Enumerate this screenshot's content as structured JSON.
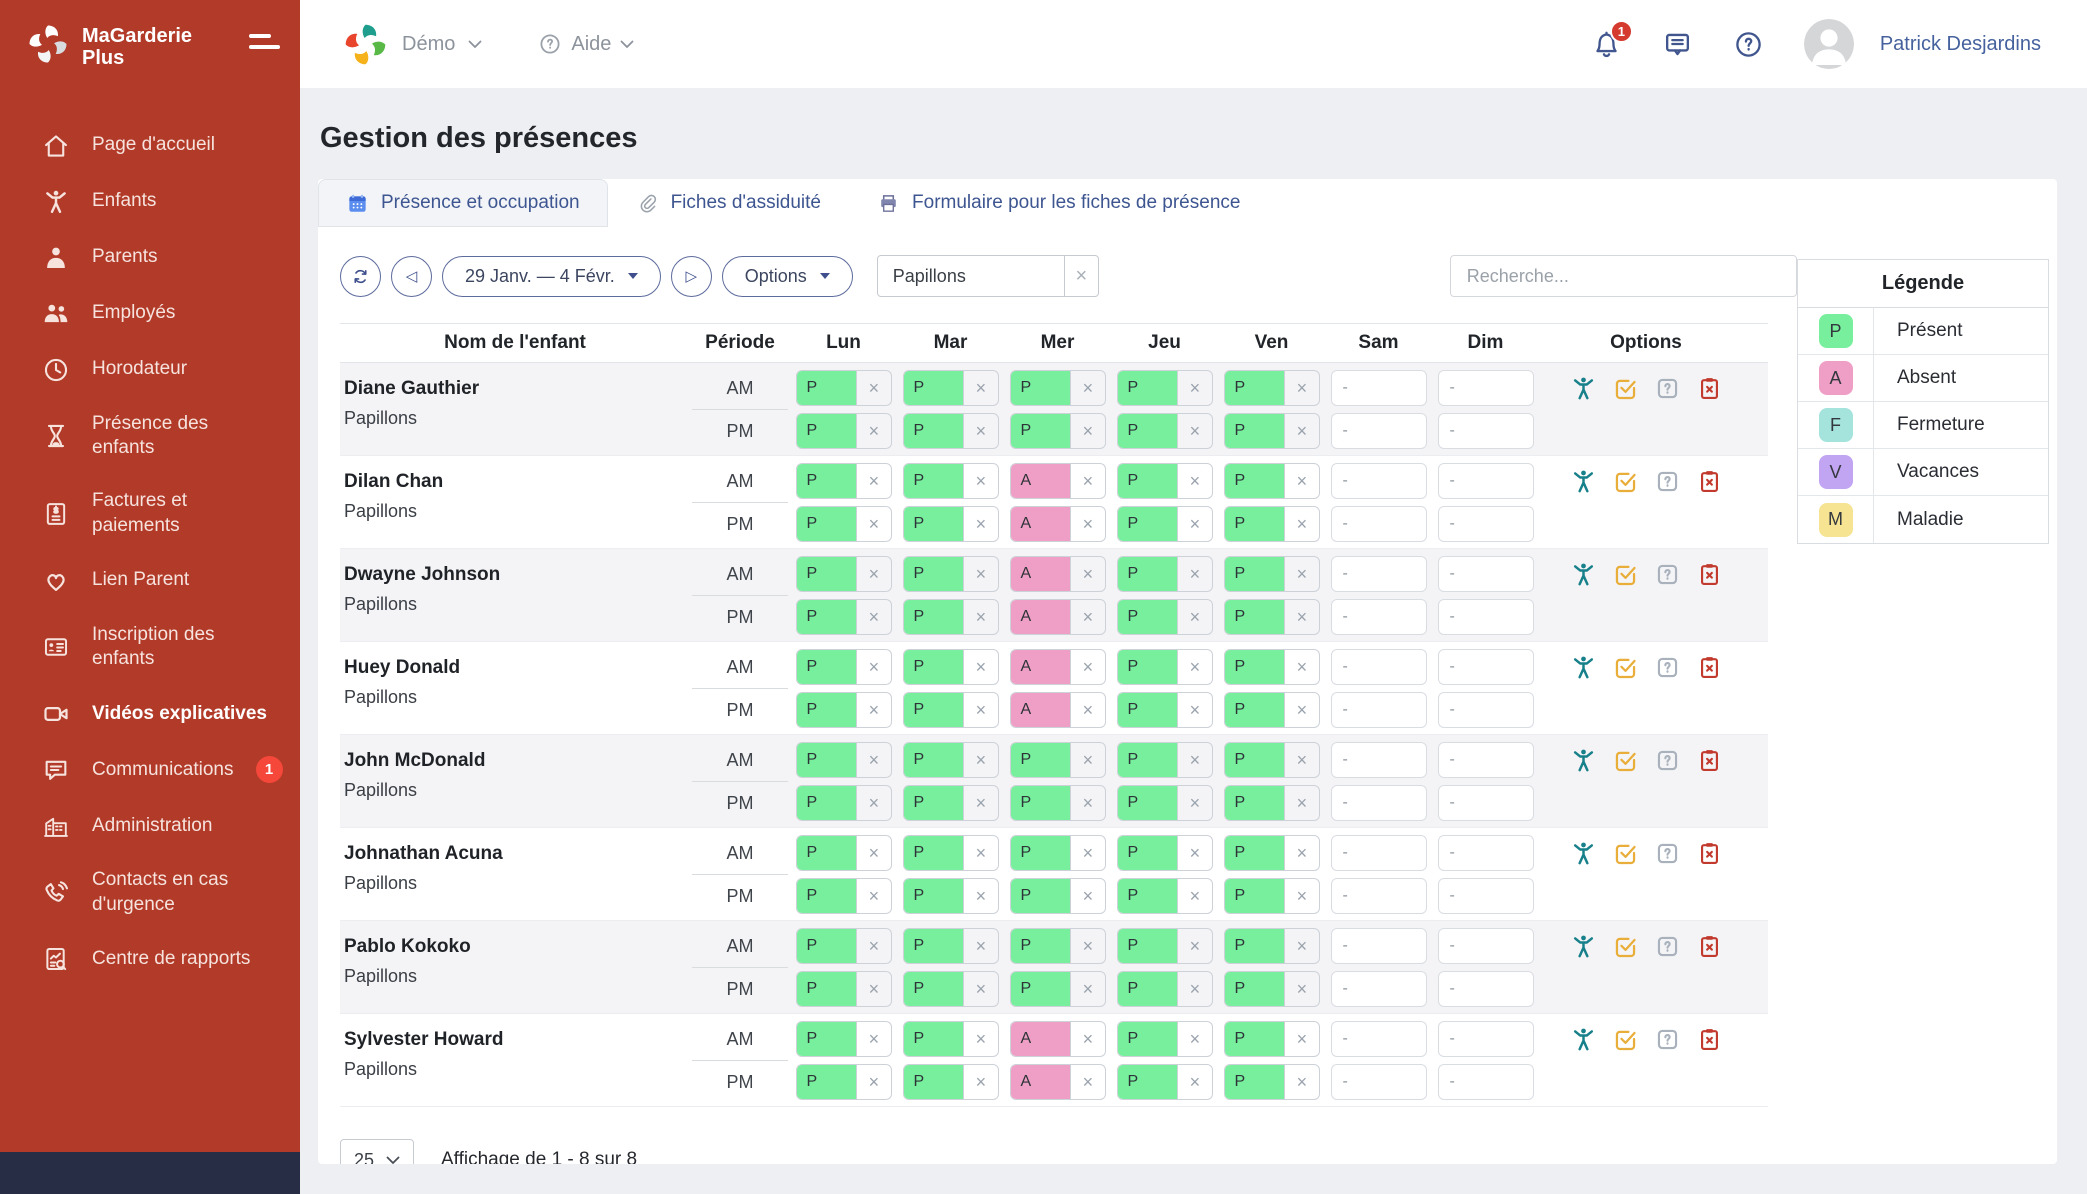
{
  "brand": {
    "line1": "MaGarderie",
    "line2": "Plus"
  },
  "sidebar": {
    "items": [
      {
        "label": "Page d'accueil",
        "icon": "home",
        "active": false
      },
      {
        "label": "Enfants",
        "icon": "child",
        "active": false
      },
      {
        "label": "Parents",
        "icon": "parent",
        "active": false
      },
      {
        "label": "Employés",
        "icon": "people",
        "active": false
      },
      {
        "label": "Horodateur",
        "icon": "clock",
        "active": false
      },
      {
        "label": "Présence des enfants",
        "icon": "hourglass",
        "active": false
      },
      {
        "label": "Factures et paiements",
        "icon": "invoice",
        "active": false
      },
      {
        "label": "Lien Parent",
        "icon": "heart",
        "active": false
      },
      {
        "label": "Inscription des enfants",
        "icon": "id-card",
        "active": false
      },
      {
        "label": "Vidéos explicatives",
        "icon": "video",
        "active": true
      },
      {
        "label": "Communications",
        "icon": "chat",
        "active": false,
        "badge": "1"
      },
      {
        "label": "Administration",
        "icon": "building",
        "active": false
      },
      {
        "label": "Contacts en cas d'urgence",
        "icon": "phone",
        "active": false
      },
      {
        "label": "Centre de rapports",
        "icon": "report",
        "active": false
      }
    ]
  },
  "topbar": {
    "org_label": "Démo",
    "help_label": "Aide",
    "notification_count": "1",
    "user_name": "Patrick Desjardins"
  },
  "page": {
    "title": "Gestion des présences"
  },
  "tabs": [
    {
      "label": "Présence et occupation",
      "icon": "calendar",
      "active": true
    },
    {
      "label": "Fiches d'assiduité",
      "icon": "paperclip",
      "active": false
    },
    {
      "label": "Formulaire pour les fiches de présence",
      "icon": "printer",
      "active": false
    }
  ],
  "toolbar": {
    "date_range": "29 Janv. — 4 Févr.",
    "options_label": "Options",
    "group_filter_value": "Papillons",
    "search_placeholder": "Recherche..."
  },
  "table": {
    "headers": {
      "name": "Nom de l'enfant",
      "period": "Période",
      "days": [
        "Lun",
        "Mar",
        "Mer",
        "Jeu",
        "Ven",
        "Sam",
        "Dim"
      ],
      "options": "Options"
    },
    "period_labels": [
      "AM",
      "PM"
    ],
    "status_colors": {
      "P": "#77ef9d",
      "A": "#ef9fc5"
    },
    "option_actions": [
      {
        "name": "child-profile-icon",
        "icon": "opt-child"
      },
      {
        "name": "confirm-attendance-icon",
        "icon": "opt-check"
      },
      {
        "name": "unknown-status-icon",
        "icon": "opt-question"
      },
      {
        "name": "remove-attendance-icon",
        "icon": "opt-clipboard-x"
      }
    ],
    "rows": [
      {
        "name": "Diane Gauthier",
        "group": "Papillons",
        "am": [
          "P",
          "P",
          "P",
          "P",
          "P",
          "-",
          "-"
        ],
        "pm": [
          "P",
          "P",
          "P",
          "P",
          "P",
          "-",
          "-"
        ]
      },
      {
        "name": "Dilan Chan",
        "group": "Papillons",
        "am": [
          "P",
          "P",
          "A",
          "P",
          "P",
          "-",
          "-"
        ],
        "pm": [
          "P",
          "P",
          "A",
          "P",
          "P",
          "-",
          "-"
        ]
      },
      {
        "name": "Dwayne Johnson",
        "group": "Papillons",
        "am": [
          "P",
          "P",
          "A",
          "P",
          "P",
          "-",
          "-"
        ],
        "pm": [
          "P",
          "P",
          "A",
          "P",
          "P",
          "-",
          "-"
        ]
      },
      {
        "name": "Huey Donald",
        "group": "Papillons",
        "am": [
          "P",
          "P",
          "A",
          "P",
          "P",
          "-",
          "-"
        ],
        "pm": [
          "P",
          "P",
          "A",
          "P",
          "P",
          "-",
          "-"
        ]
      },
      {
        "name": "John McDonald",
        "group": "Papillons",
        "am": [
          "P",
          "P",
          "P",
          "P",
          "P",
          "-",
          "-"
        ],
        "pm": [
          "P",
          "P",
          "P",
          "P",
          "P",
          "-",
          "-"
        ]
      },
      {
        "name": "Johnathan Acuna",
        "group": "Papillons",
        "am": [
          "P",
          "P",
          "P",
          "P",
          "P",
          "-",
          "-"
        ],
        "pm": [
          "P",
          "P",
          "P",
          "P",
          "P",
          "-",
          "-"
        ]
      },
      {
        "name": "Pablo Kokoko",
        "group": "Papillons",
        "am": [
          "P",
          "P",
          "P",
          "P",
          "P",
          "-",
          "-"
        ],
        "pm": [
          "P",
          "P",
          "P",
          "P",
          "P",
          "-",
          "-"
        ]
      },
      {
        "name": "Sylvester Howard",
        "group": "Papillons",
        "am": [
          "P",
          "P",
          "A",
          "P",
          "P",
          "-",
          "-"
        ],
        "pm": [
          "P",
          "P",
          "A",
          "P",
          "P",
          "-",
          "-"
        ]
      }
    ]
  },
  "legend": {
    "title": "Légende",
    "entries": [
      {
        "code": "P",
        "label": "Présent",
        "color": "#77ef9d"
      },
      {
        "code": "A",
        "label": "Absent",
        "color": "#ef9fc5"
      },
      {
        "code": "F",
        "label": "Fermeture",
        "color": "#a5e3dd"
      },
      {
        "code": "V",
        "label": "Vacances",
        "color": "#c1a4f2"
      },
      {
        "code": "M",
        "label": "Maladie",
        "color": "#f6e493"
      }
    ]
  },
  "pagination": {
    "page_size": "25",
    "summary": "Affichage de 1 - 8 sur 8"
  }
}
